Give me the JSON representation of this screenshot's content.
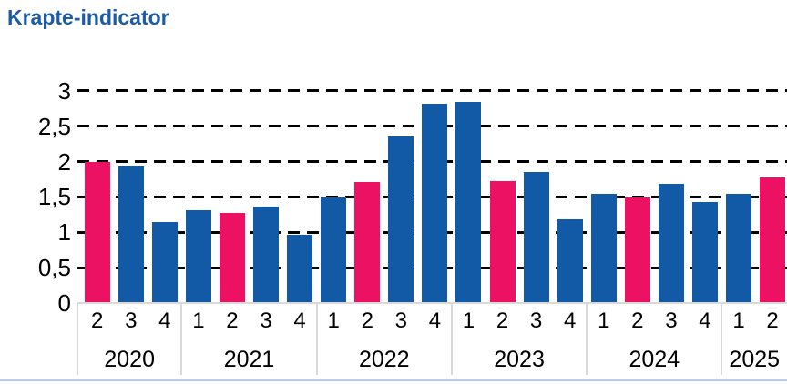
{
  "title": "Krapte-indicator",
  "chart_data": {
    "type": "bar",
    "title": "Krapte-indicator",
    "xlabel": "",
    "ylabel": "",
    "ylim": [
      0,
      3
    ],
    "ytick_values": [
      0,
      0.5,
      1,
      1.5,
      2,
      2.5,
      3
    ],
    "ytick_labels": [
      "0",
      "0,5",
      "1",
      "1,5",
      "2",
      "2,5",
      "3"
    ],
    "grid": "horizontal dashed black lines at each 0.5 step, bars drawn in front",
    "legend": "none",
    "decimal_separator": ",",
    "colors": {
      "title": "#1b5ba8",
      "bar_default": "#1259a6",
      "bar_highlight": "#ed1164",
      "axis_line": "#d9d9d9",
      "gridline": "#000000",
      "bottom_rule": "#b9cbe8"
    },
    "highlight_note": "second-quarter bars are pink, all other bars are blue",
    "groups": [
      {
        "year": "2020",
        "quarters": [
          "2",
          "3",
          "4"
        ],
        "values": [
          2.0,
          1.94,
          1.15
        ]
      },
      {
        "year": "2021",
        "quarters": [
          "1",
          "2",
          "3",
          "4"
        ],
        "values": [
          1.31,
          1.27,
          1.36,
          0.96
        ]
      },
      {
        "year": "2022",
        "quarters": [
          "1",
          "2",
          "3",
          "4"
        ],
        "values": [
          1.5,
          1.71,
          2.35,
          2.82
        ]
      },
      {
        "year": "2023",
        "quarters": [
          "1",
          "2",
          "3",
          "4"
        ],
        "values": [
          2.85,
          1.72,
          1.85,
          1.18
        ]
      },
      {
        "year": "2024",
        "quarters": [
          "1",
          "2",
          "3",
          "4"
        ],
        "values": [
          1.54,
          1.49,
          1.69,
          1.43
        ]
      },
      {
        "year": "2025",
        "quarters": [
          "1",
          "2"
        ],
        "values": [
          1.55,
          1.78
        ]
      }
    ]
  }
}
